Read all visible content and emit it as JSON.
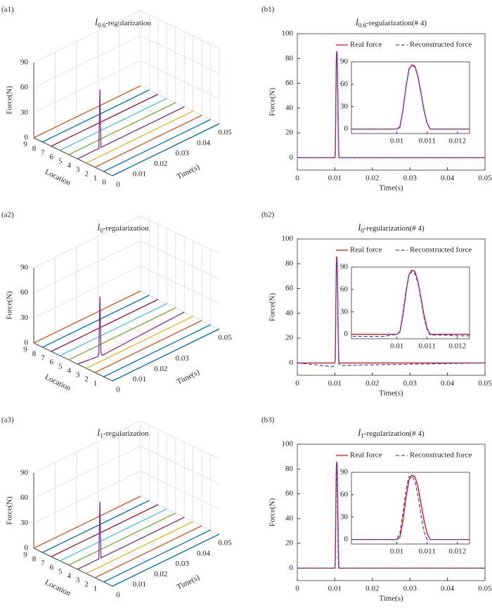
{
  "chart_data": [
    {
      "type": "waterfall3d",
      "panel_label": "(a1)",
      "title": {
        "base": "l",
        "sub": "0.6",
        "text": "-regularization"
      },
      "zlabel": "Force(N)",
      "ylabel": "Location",
      "xlabel": "Time(s)",
      "grid": true,
      "xlim": [
        0,
        0.05
      ],
      "xticks": [
        0,
        0.01,
        0.02,
        0.03,
        0.04,
        0.05
      ],
      "ylim": [
        0,
        9
      ],
      "yticks": [
        0,
        1,
        2,
        3,
        4,
        5,
        6,
        7,
        8,
        9
      ],
      "zlim": [
        0,
        90
      ],
      "zticks": [
        0,
        30,
        60,
        90
      ],
      "x": [
        0,
        0.01,
        0.0105,
        0.011,
        0.05
      ],
      "series": [
        {
          "location": 9,
          "color": "#d95319",
          "values": [
            0,
            0,
            0,
            0,
            0
          ]
        },
        {
          "location": 8,
          "color": "#0072bd",
          "values": [
            0,
            0,
            0,
            0,
            0
          ]
        },
        {
          "location": 7,
          "color": "#a2142f",
          "values": [
            0,
            0,
            0,
            0,
            0
          ]
        },
        {
          "location": 6,
          "color": "#4dbeee",
          "values": [
            0,
            0,
            0,
            0,
            0
          ]
        },
        {
          "location": 5,
          "color": "#77ac30",
          "values": [
            0,
            0,
            0,
            0,
            0
          ]
        },
        {
          "location": 4,
          "color": "#7e2f8e",
          "values": [
            0,
            0,
            70,
            0,
            0
          ]
        },
        {
          "location": 3,
          "color": "#edb120",
          "values": [
            0,
            0,
            0,
            0,
            0
          ]
        },
        {
          "location": 2,
          "color": "#d95319",
          "values": [
            0,
            0,
            0,
            0,
            0
          ]
        },
        {
          "location": 1,
          "color": "#0072bd",
          "values": [
            0,
            0,
            0,
            0,
            0
          ]
        },
        {
          "location": 0,
          "color": "#0072bd",
          "values": [
            0,
            0,
            0,
            0,
            0
          ]
        }
      ]
    },
    {
      "type": "line",
      "panel_label": "(b1)",
      "title": {
        "base": "l",
        "sub": "0.6",
        "text": "-regularization(# 4)"
      },
      "xlabel": "Time(s)",
      "ylabel": "Force(N)",
      "grid": false,
      "legend": "upper right",
      "xlim": [
        0,
        0.05
      ],
      "xticks": [
        0,
        0.01,
        0.02,
        0.03,
        0.04,
        0.05
      ],
      "ylim": [
        -10,
        100
      ],
      "yticks": [
        0,
        20,
        40,
        60,
        80,
        100
      ],
      "x": [
        0,
        0.0095,
        0.01,
        0.0101,
        0.0102,
        0.0103,
        0.0104,
        0.0105,
        0.0106,
        0.0107,
        0.0108,
        0.0109,
        0.011,
        0.0111,
        0.0115,
        0.012,
        0.05
      ],
      "series": [
        {
          "name": "Real force",
          "color": "#ff0000",
          "linestyle": "solid",
          "values": [
            0,
            0,
            0,
            3,
            25,
            55,
            80,
            86,
            84,
            70,
            48,
            25,
            8,
            0,
            0,
            0,
            0
          ]
        },
        {
          "name": "Reconstructed force",
          "color": "#3050e0",
          "linestyle": "dashed",
          "values": [
            0,
            0,
            0,
            2,
            24,
            56,
            81,
            85,
            83,
            69,
            47,
            24,
            7,
            0,
            0,
            0,
            0
          ]
        }
      ],
      "inset": {
        "xlim": [
          0.0085,
          0.0124
        ],
        "xticks": [
          0.01,
          0.011,
          0.012
        ],
        "ylim": [
          -6,
          90
        ],
        "yticks": [
          0,
          30,
          60,
          90
        ]
      }
    },
    {
      "type": "waterfall3d",
      "panel_label": "(a2)",
      "title": {
        "base": "l",
        "sub": "0",
        "text": "-regularization"
      },
      "zlabel": "Force(N)",
      "ylabel": "Location",
      "xlabel": "Time(s)",
      "grid": true,
      "xlim": [
        0,
        0.05
      ],
      "xticks": [
        0,
        0.01,
        0.02,
        0.03,
        0.05
      ],
      "ylim": [
        0,
        9
      ],
      "yticks": [
        1,
        2,
        3,
        4,
        5,
        6,
        7,
        8,
        9
      ],
      "zlim": [
        0,
        90
      ],
      "zticks": [
        0,
        30,
        60,
        90
      ],
      "x": [
        0,
        0.0095,
        0.01,
        0.0105,
        0.011,
        0.0115,
        0.05
      ],
      "series": [
        {
          "location": 9,
          "color": "#d95319",
          "values": [
            0,
            0,
            0,
            0,
            0,
            0,
            0
          ]
        },
        {
          "location": 8,
          "color": "#0072bd",
          "values": [
            0,
            0,
            0,
            0,
            0,
            0,
            0
          ]
        },
        {
          "location": 7,
          "color": "#a2142f",
          "values": [
            0,
            0,
            0,
            0,
            0,
            0,
            0
          ]
        },
        {
          "location": 6,
          "color": "#4dbeee",
          "values": [
            0,
            0,
            0,
            0,
            0,
            0,
            0
          ]
        },
        {
          "location": 5,
          "color": "#77ac30",
          "values": [
            0,
            0,
            0,
            0,
            0,
            0,
            0
          ]
        },
        {
          "location": 4,
          "color": "#7e2f8e",
          "values": [
            0,
            -3,
            0,
            68,
            0,
            -4,
            0
          ]
        },
        {
          "location": 3,
          "color": "#edb120",
          "values": [
            0,
            0,
            0,
            0,
            0,
            0,
            0
          ]
        },
        {
          "location": 2,
          "color": "#d95319",
          "values": [
            0,
            0,
            0,
            0,
            0,
            0,
            0
          ]
        },
        {
          "location": 1,
          "color": "#0072bd",
          "values": [
            0,
            0,
            0,
            0,
            0,
            0,
            0
          ]
        },
        {
          "location": 0,
          "color": "#0072bd",
          "values": [
            0,
            0,
            0,
            0,
            0,
            0,
            0
          ]
        }
      ]
    },
    {
      "type": "line",
      "panel_label": "(b2)",
      "title": {
        "base": "l",
        "sub": "0",
        "text": "-regularization(# 4)"
      },
      "xlabel": "Time(s)",
      "ylabel": "Force(N)",
      "grid": false,
      "legend": "upper right",
      "xlim": [
        0,
        0.05
      ],
      "xticks": [
        0,
        0.01,
        0.02,
        0.03,
        0.04,
        0.05
      ],
      "ylim": [
        -10,
        100
      ],
      "yticks": [
        0,
        20,
        40,
        60,
        80,
        100
      ],
      "x": [
        0,
        0.0095,
        0.01,
        0.0101,
        0.0102,
        0.0103,
        0.0104,
        0.0105,
        0.0106,
        0.0107,
        0.0108,
        0.0109,
        0.011,
        0.0111,
        0.0115,
        0.012,
        0.05
      ],
      "series": [
        {
          "name": "Real force",
          "color": "#ff0000",
          "linestyle": "solid",
          "values": [
            0,
            0,
            0,
            3,
            25,
            55,
            80,
            86,
            84,
            70,
            48,
            25,
            8,
            0,
            0,
            0,
            0
          ]
        },
        {
          "name": "Reconstructed force",
          "color": "#3050e0",
          "linestyle": "dashed",
          "values": [
            0,
            -3,
            0,
            4,
            28,
            58,
            80,
            84,
            81,
            68,
            46,
            22,
            6,
            -1,
            -1,
            -2,
            0
          ]
        }
      ],
      "inset": {
        "xlim": [
          0.0085,
          0.0124
        ],
        "xticks": [
          0.01,
          0.011,
          0.012
        ],
        "ylim": [
          -6,
          90
        ],
        "yticks": [
          0,
          30,
          60,
          90
        ]
      }
    },
    {
      "type": "waterfall3d",
      "panel_label": "(a3)",
      "title": {
        "base": "l",
        "sub": "1",
        "text": "-regularization"
      },
      "zlabel": "Force(N)",
      "ylabel": "Location",
      "xlabel": "Time(s)",
      "grid": true,
      "xlim": [
        0,
        0.05
      ],
      "xticks": [
        0,
        0.01,
        0.02,
        0.03,
        0.04,
        0.05
      ],
      "ylim": [
        0,
        9
      ],
      "yticks": [
        1,
        2,
        3,
        4,
        5,
        6,
        7,
        8,
        9
      ],
      "zlim": [
        0,
        90
      ],
      "zticks": [
        0,
        30,
        60,
        90
      ],
      "x": [
        0,
        0.01,
        0.0105,
        0.011,
        0.05
      ],
      "series": [
        {
          "location": 9,
          "color": "#d95319",
          "values": [
            0,
            0,
            0,
            0,
            0
          ]
        },
        {
          "location": 8,
          "color": "#0072bd",
          "values": [
            0,
            0,
            0,
            0,
            0
          ]
        },
        {
          "location": 7,
          "color": "#a2142f",
          "values": [
            0,
            0,
            0,
            0,
            0
          ]
        },
        {
          "location": 6,
          "color": "#4dbeee",
          "values": [
            0,
            0,
            0,
            0,
            0
          ]
        },
        {
          "location": 5,
          "color": "#77ac30",
          "values": [
            0,
            0,
            0,
            0,
            0
          ]
        },
        {
          "location": 4,
          "color": "#7e2f8e",
          "values": [
            0,
            0,
            68,
            0,
            0
          ]
        },
        {
          "location": 3,
          "color": "#edb120",
          "values": [
            0,
            0,
            0,
            0,
            0
          ]
        },
        {
          "location": 2,
          "color": "#d95319",
          "values": [
            0,
            0,
            0,
            0,
            0
          ]
        },
        {
          "location": 1,
          "color": "#0072bd",
          "values": [
            0,
            0,
            0,
            0,
            0
          ]
        },
        {
          "location": 0,
          "color": "#0072bd",
          "values": [
            0,
            0,
            0,
            0,
            0
          ]
        }
      ]
    },
    {
      "type": "line",
      "panel_label": "(b3)",
      "title": {
        "base": "l",
        "sub": "1",
        "text": "-regularization(# 4)"
      },
      "xlabel": "Time(s)",
      "ylabel": "Force(N)",
      "grid": false,
      "legend": "upper right",
      "xlim": [
        0,
        0.05
      ],
      "xticks": [
        0,
        0.01,
        0.02,
        0.03,
        0.04,
        0.05
      ],
      "ylim": [
        -10,
        100
      ],
      "yticks": [
        0,
        20,
        40,
        60,
        80,
        100
      ],
      "x": [
        0,
        0.0095,
        0.01,
        0.0101,
        0.0102,
        0.0103,
        0.0104,
        0.0105,
        0.0106,
        0.0107,
        0.0108,
        0.0109,
        0.011,
        0.0111,
        0.0115,
        0.012,
        0.05
      ],
      "series": [
        {
          "name": "Real force",
          "color": "#ff0000",
          "linestyle": "solid",
          "values": [
            0,
            0,
            0,
            3,
            25,
            55,
            80,
            86,
            84,
            70,
            48,
            25,
            8,
            0,
            0,
            0,
            0
          ]
        },
        {
          "name": "Reconstructed force",
          "color": "#3050e0",
          "linestyle": "dashed",
          "values": [
            0,
            0,
            0,
            8,
            35,
            66,
            84,
            85,
            78,
            58,
            32,
            10,
            0,
            0,
            0,
            0,
            0
          ]
        }
      ],
      "inset": {
        "xlim": [
          0.0085,
          0.0124
        ],
        "xticks": [
          0.01,
          0.011,
          0.012
        ],
        "ylim": [
          -6,
          90
        ],
        "yticks": [
          0,
          30,
          60,
          90
        ]
      }
    }
  ]
}
